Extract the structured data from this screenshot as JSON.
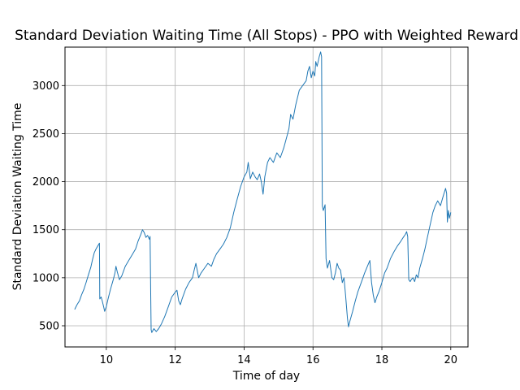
{
  "chart_data": {
    "type": "line",
    "title": "Standard Deviation Waiting Time (All Stops) - PPO with Weighted Reward",
    "xlabel": "Time of day",
    "ylabel": "Standard Deviation Waiting Time",
    "xlim": [
      8.8,
      20.5
    ],
    "ylim": [
      280,
      3400
    ],
    "xticks": [
      10,
      12,
      14,
      16,
      18,
      20
    ],
    "yticks": [
      500,
      1000,
      1500,
      2000,
      2500,
      3000
    ],
    "grid": true,
    "colors": {
      "line": "#1f77b4",
      "grid": "#b0b0b0",
      "axes": "#000000"
    },
    "series": [
      {
        "points": [
          [
            9.08,
            670
          ],
          [
            9.15,
            720
          ],
          [
            9.22,
            760
          ],
          [
            9.28,
            820
          ],
          [
            9.35,
            880
          ],
          [
            9.42,
            960
          ],
          [
            9.48,
            1030
          ],
          [
            9.55,
            1110
          ],
          [
            9.6,
            1190
          ],
          [
            9.65,
            1260
          ],
          [
            9.7,
            1300
          ],
          [
            9.75,
            1330
          ],
          [
            9.8,
            1360
          ],
          [
            9.81,
            780
          ],
          [
            9.85,
            800
          ],
          [
            9.88,
            760
          ],
          [
            9.92,
            700
          ],
          [
            9.95,
            650
          ],
          [
            10.0,
            700
          ],
          [
            10.05,
            780
          ],
          [
            10.12,
            880
          ],
          [
            10.2,
            980
          ],
          [
            10.25,
            1050
          ],
          [
            10.28,
            1120
          ],
          [
            10.32,
            1060
          ],
          [
            10.38,
            980
          ],
          [
            10.45,
            1020
          ],
          [
            10.55,
            1120
          ],
          [
            10.65,
            1180
          ],
          [
            10.75,
            1240
          ],
          [
            10.85,
            1300
          ],
          [
            10.92,
            1380
          ],
          [
            11.0,
            1450
          ],
          [
            11.05,
            1500
          ],
          [
            11.1,
            1470
          ],
          [
            11.15,
            1420
          ],
          [
            11.2,
            1440
          ],
          [
            11.25,
            1400
          ],
          [
            11.27,
            1430
          ],
          [
            11.3,
            460
          ],
          [
            11.32,
            430
          ],
          [
            11.38,
            470
          ],
          [
            11.45,
            440
          ],
          [
            11.52,
            470
          ],
          [
            11.6,
            520
          ],
          [
            11.7,
            600
          ],
          [
            11.8,
            700
          ],
          [
            11.9,
            800
          ],
          [
            12.0,
            850
          ],
          [
            12.05,
            870
          ],
          [
            12.1,
            760
          ],
          [
            12.15,
            720
          ],
          [
            12.2,
            780
          ],
          [
            12.3,
            880
          ],
          [
            12.4,
            950
          ],
          [
            12.5,
            1000
          ],
          [
            12.55,
            1080
          ],
          [
            12.6,
            1150
          ],
          [
            12.68,
            1000
          ],
          [
            12.75,
            1050
          ],
          [
            12.85,
            1100
          ],
          [
            12.95,
            1150
          ],
          [
            13.05,
            1120
          ],
          [
            13.12,
            1190
          ],
          [
            13.2,
            1250
          ],
          [
            13.3,
            1300
          ],
          [
            13.4,
            1350
          ],
          [
            13.5,
            1420
          ],
          [
            13.6,
            1520
          ],
          [
            13.7,
            1680
          ],
          [
            13.8,
            1820
          ],
          [
            13.9,
            1950
          ],
          [
            14.0,
            2050
          ],
          [
            14.08,
            2100
          ],
          [
            14.12,
            2200
          ],
          [
            14.18,
            2030
          ],
          [
            14.25,
            2100
          ],
          [
            14.32,
            2050
          ],
          [
            14.38,
            2020
          ],
          [
            14.45,
            2080
          ],
          [
            14.5,
            2000
          ],
          [
            14.55,
            1870
          ],
          [
            14.6,
            2050
          ],
          [
            14.68,
            2200
          ],
          [
            14.75,
            2250
          ],
          [
            14.85,
            2200
          ],
          [
            14.95,
            2300
          ],
          [
            15.05,
            2250
          ],
          [
            15.15,
            2350
          ],
          [
            15.25,
            2480
          ],
          [
            15.3,
            2550
          ],
          [
            15.35,
            2700
          ],
          [
            15.42,
            2650
          ],
          [
            15.5,
            2800
          ],
          [
            15.6,
            2950
          ],
          [
            15.7,
            3000
          ],
          [
            15.8,
            3050
          ],
          [
            15.85,
            3150
          ],
          [
            15.9,
            3200
          ],
          [
            15.95,
            3080
          ],
          [
            16.0,
            3150
          ],
          [
            16.05,
            3100
          ],
          [
            16.08,
            3250
          ],
          [
            16.12,
            3200
          ],
          [
            16.18,
            3300
          ],
          [
            16.22,
            3350
          ],
          [
            16.25,
            3300
          ],
          [
            16.27,
            1750
          ],
          [
            16.3,
            1700
          ],
          [
            16.35,
            1760
          ],
          [
            16.38,
            1200
          ],
          [
            16.42,
            1100
          ],
          [
            16.48,
            1180
          ],
          [
            16.55,
            1000
          ],
          [
            16.6,
            980
          ],
          [
            16.65,
            1050
          ],
          [
            16.7,
            1150
          ],
          [
            16.75,
            1100
          ],
          [
            16.8,
            1080
          ],
          [
            16.85,
            950
          ],
          [
            16.9,
            1000
          ],
          [
            16.95,
            800
          ],
          [
            17.0,
            580
          ],
          [
            17.03,
            490
          ],
          [
            17.08,
            560
          ],
          [
            17.15,
            650
          ],
          [
            17.22,
            750
          ],
          [
            17.3,
            850
          ],
          [
            17.4,
            950
          ],
          [
            17.5,
            1050
          ],
          [
            17.58,
            1120
          ],
          [
            17.65,
            1180
          ],
          [
            17.7,
            950
          ],
          [
            17.75,
            820
          ],
          [
            17.8,
            740
          ],
          [
            17.85,
            800
          ],
          [
            17.92,
            860
          ],
          [
            18.0,
            950
          ],
          [
            18.08,
            1050
          ],
          [
            18.15,
            1100
          ],
          [
            18.25,
            1200
          ],
          [
            18.35,
            1270
          ],
          [
            18.45,
            1330
          ],
          [
            18.55,
            1380
          ],
          [
            18.62,
            1420
          ],
          [
            18.68,
            1450
          ],
          [
            18.72,
            1480
          ],
          [
            18.75,
            1430
          ],
          [
            18.78,
            980
          ],
          [
            18.82,
            960
          ],
          [
            18.85,
            980
          ],
          [
            18.9,
            1000
          ],
          [
            18.95,
            960
          ],
          [
            19.0,
            1030
          ],
          [
            19.05,
            1000
          ],
          [
            19.1,
            1100
          ],
          [
            19.18,
            1200
          ],
          [
            19.25,
            1300
          ],
          [
            19.32,
            1420
          ],
          [
            19.4,
            1550
          ],
          [
            19.48,
            1680
          ],
          [
            19.55,
            1750
          ],
          [
            19.62,
            1800
          ],
          [
            19.7,
            1750
          ],
          [
            19.78,
            1850
          ],
          [
            19.85,
            1930
          ],
          [
            19.88,
            1880
          ],
          [
            19.9,
            1580
          ],
          [
            19.93,
            1700
          ],
          [
            19.96,
            1620
          ],
          [
            20.0,
            1680
          ]
        ]
      }
    ]
  }
}
